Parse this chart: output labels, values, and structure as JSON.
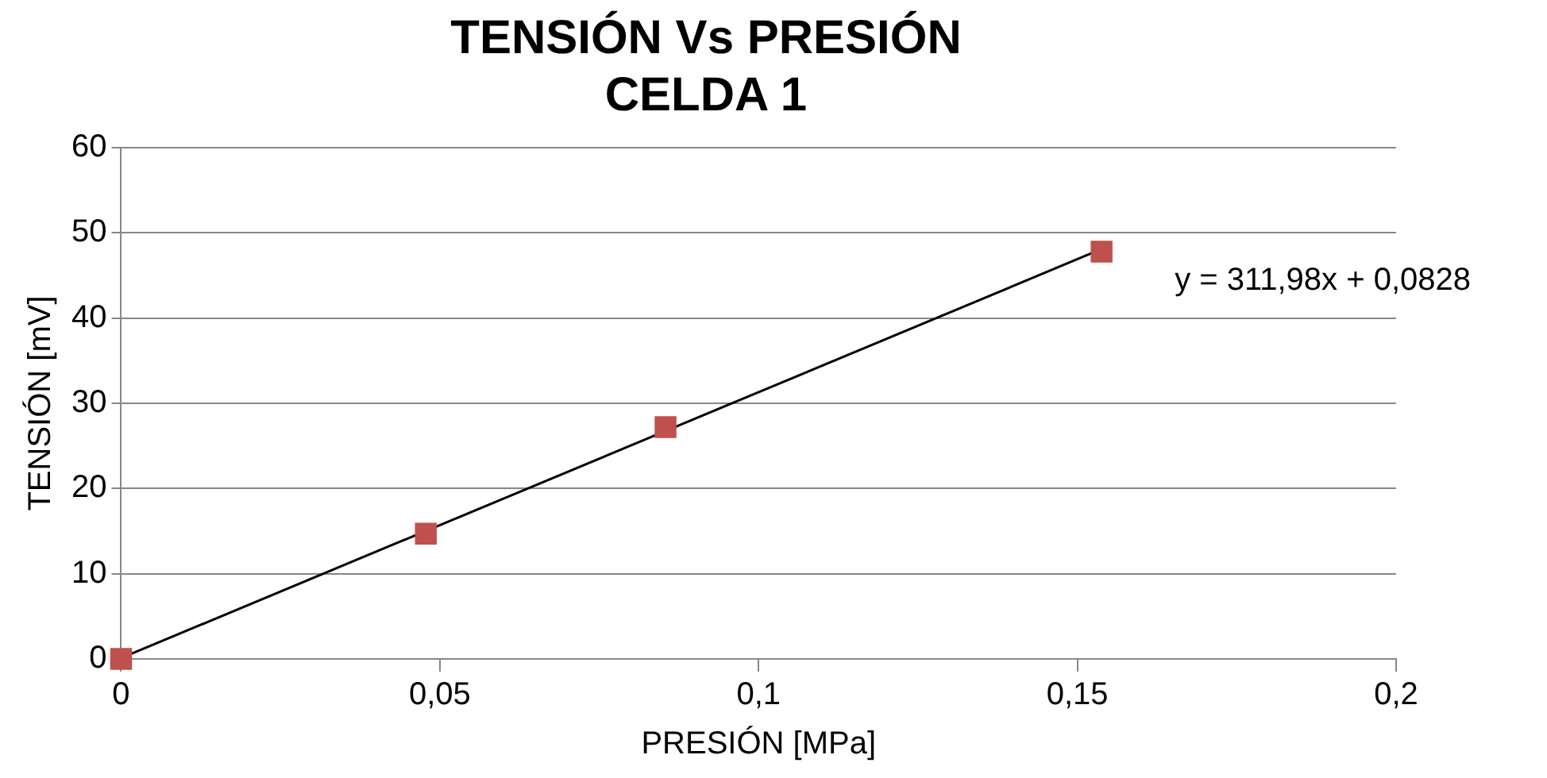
{
  "chart_data": {
    "type": "scatter",
    "title": [
      "TENSIÓN Vs PRESIÓN",
      "CELDA 1"
    ],
    "xlabel": "PRESIÓN [MPa]",
    "ylabel": "TENSIÓN [mV]",
    "x": [
      0,
      0.0478,
      0.0854,
      0.1538
    ],
    "series": [
      {
        "type": "scatter",
        "color": "#c0504d",
        "values": [
          0,
          14.7,
          27.2,
          47.8
        ],
        "marker": "square"
      },
      {
        "type": "line",
        "color": "#000000",
        "x": [
          0,
          0.1538
        ],
        "values": [
          0.1,
          48.1
        ],
        "marker": "none"
      }
    ],
    "annotations": [
      "y = 311,98x + 0,0828"
    ],
    "xlim": [
      0,
      0.2
    ],
    "xticks": [
      0,
      {
        "value": 0.05,
        "label": "0,05"
      },
      {
        "value": 0.1,
        "label": "0,1"
      },
      {
        "value": 0.15,
        "label": "0,15"
      },
      {
        "value": 0.2,
        "label": "0,2"
      }
    ],
    "ylim": [
      0,
      60
    ],
    "yticks": [
      0,
      10,
      20,
      30,
      40,
      50,
      60
    ],
    "grid": "y",
    "legend": false
  }
}
